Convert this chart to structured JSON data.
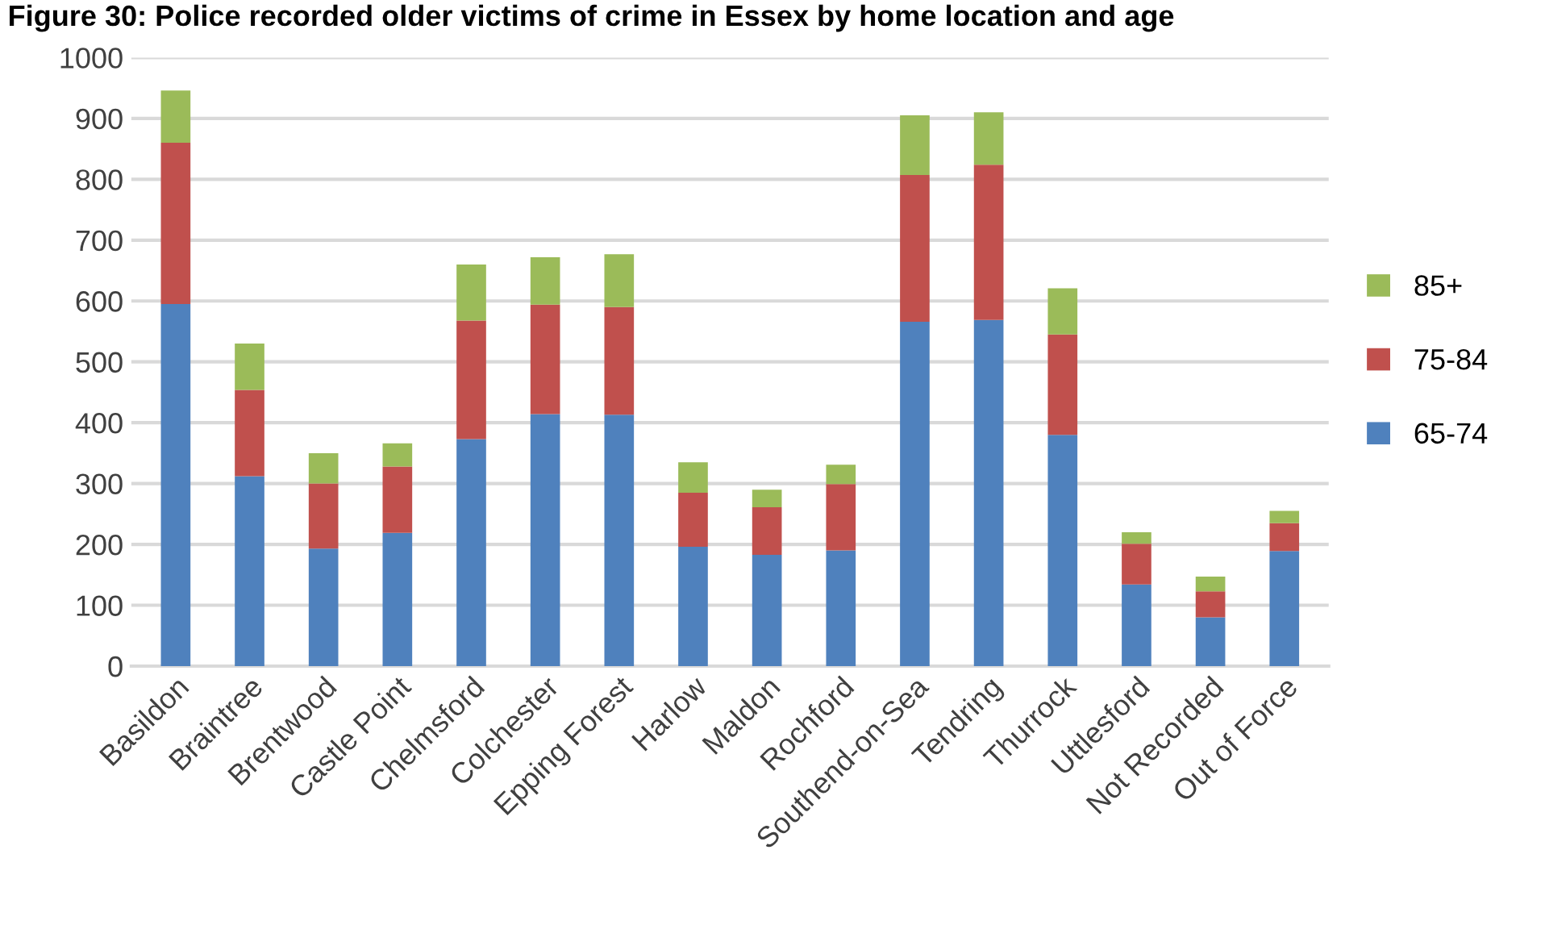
{
  "chart_data": {
    "type": "bar",
    "stacked": true,
    "title": "Figure 30: Police recorded older victims of crime in Essex by home location and age",
    "categories": [
      "Basildon",
      "Braintree",
      "Brentwood",
      "Castle Point",
      "Chelmsford",
      "Colchester",
      "Epping Forest",
      "Harlow",
      "Maldon",
      "Rochford",
      "Southend-on-Sea",
      "Tendring",
      "Thurrock",
      "Uttlesford",
      "Not Recorded",
      "Out of Force"
    ],
    "series": [
      {
        "name": "65-74",
        "color": "#4f81bd",
        "values": [
          595,
          312,
          193,
          219,
          373,
          414,
          413,
          196,
          183,
          190,
          566,
          569,
          380,
          134,
          80,
          189
        ]
      },
      {
        "name": "75-84",
        "color": "#c0504d",
        "values": [
          265,
          142,
          107,
          109,
          195,
          180,
          177,
          89,
          78,
          109,
          241,
          255,
          165,
          67,
          43,
          46
        ]
      },
      {
        "name": "85+",
        "color": "#9bbb59",
        "values": [
          86,
          76,
          50,
          38,
          92,
          78,
          87,
          50,
          29,
          32,
          98,
          86,
          76,
          19,
          24,
          20
        ]
      }
    ],
    "ylim": [
      0,
      1000
    ],
    "yticks": [
      0,
      100,
      200,
      300,
      400,
      500,
      600,
      700,
      800,
      900,
      1000
    ],
    "grid": "y",
    "legend": "right"
  }
}
